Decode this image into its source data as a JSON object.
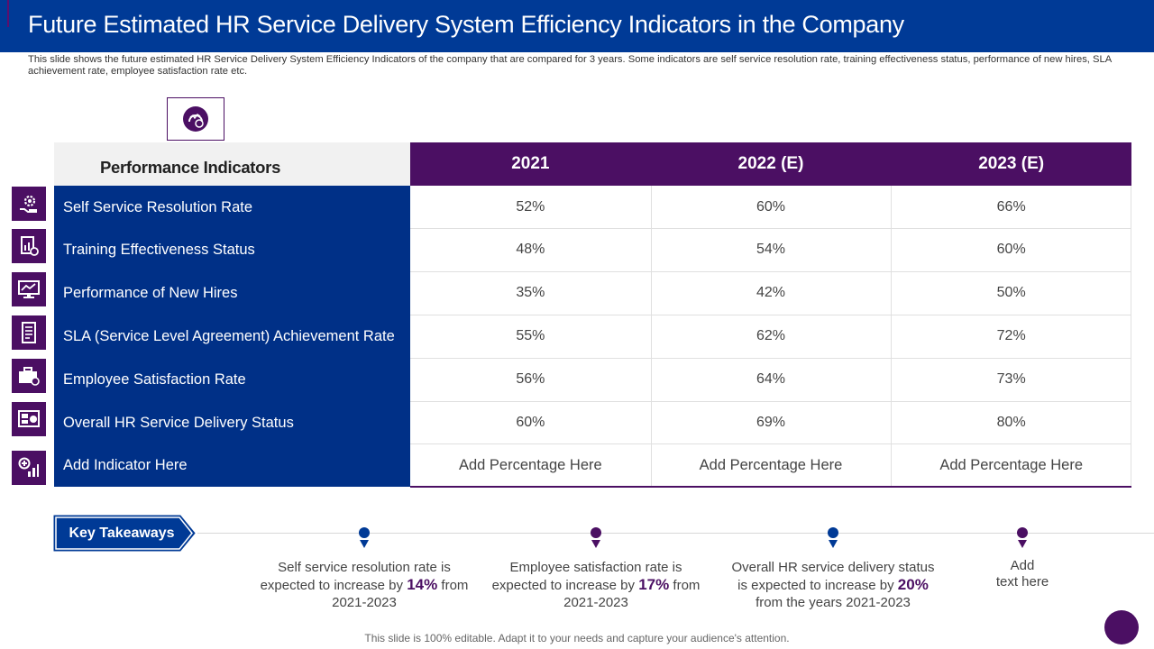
{
  "title": "Future Estimated HR Service Delivery System Efficiency Indicators in the Company",
  "subtitle": "This slide shows the future estimated HR Service Delivery System Efficiency Indicators of the company that are compared for 3 years. Some indicators are self service resolution rate, training effectiveness status, performance of new hires, SLA achievement rate, employee satisfaction rate etc.",
  "table": {
    "header_label": "Performance Indicators",
    "years": [
      "2021",
      "2022 (E)",
      "2023 (E)"
    ],
    "rows": [
      {
        "label": "Self Service Resolution Rate",
        "values": [
          "52%",
          "60%",
          "66%"
        ]
      },
      {
        "label": "Training Effectiveness Status",
        "values": [
          "48%",
          "54%",
          "60%"
        ]
      },
      {
        "label": "Performance of New Hires",
        "values": [
          "35%",
          "42%",
          "50%"
        ]
      },
      {
        "label": "SLA (Service Level Agreement) Achievement Rate",
        "values": [
          "55%",
          "62%",
          "72%"
        ]
      },
      {
        "label": "Employee Satisfaction Rate",
        "values": [
          "56%",
          "64%",
          "73%"
        ]
      },
      {
        "label": "Overall HR Service Delivery Status",
        "values": [
          "60%",
          "69%",
          "80%"
        ]
      },
      {
        "label": "Add Indicator Here",
        "values": [
          "Add Percentage Here",
          "Add Percentage Here",
          "Add Percentage Here"
        ]
      }
    ]
  },
  "key_takeaways": {
    "label": "Key Takeaways",
    "items": [
      {
        "pre": "Self service resolution rate is expected to increase by ",
        "value": "14%",
        "post": " from 2021-2023"
      },
      {
        "pre": "Employee satisfaction rate is expected to increase by ",
        "value": "17%",
        "post": " from 2021-2023"
      },
      {
        "pre": "Overall HR service delivery status is expected to increase by ",
        "value": "20%",
        "post": " from the years 2021-2023"
      }
    ],
    "add_line1": "Add",
    "add_line2": "text here"
  },
  "footer": "This slide is 100% editable. Adapt it to your needs and capture your audience's attention.",
  "colors": {
    "title_bar": "#003a96",
    "purple": "#4b0f63",
    "navy_column": "#003087",
    "pin_blue": "#003a96",
    "pin_purple": "#4b0f63"
  },
  "icons": [
    "dashboard-icon",
    "gear-hand-icon",
    "report-icon",
    "monitor-chart-icon",
    "document-icon",
    "briefcase-icon",
    "dashboard-grid-icon",
    "add-chart-icon",
    "location-pin-icon"
  ]
}
